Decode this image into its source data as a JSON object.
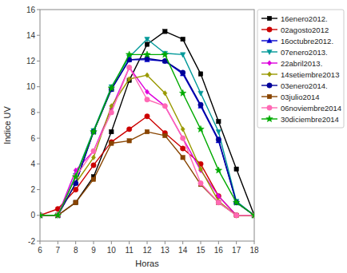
{
  "chart_data": {
    "type": "line",
    "x": [
      6,
      7,
      8,
      9,
      10,
      11,
      12,
      13,
      14,
      15,
      16,
      17,
      18
    ],
    "series": [
      {
        "name": "16enero2012.",
        "color": "#000000",
        "marker": "square",
        "values": [
          0.0,
          0.0,
          1.0,
          3.0,
          6.5,
          10.5,
          13.3,
          14.3,
          13.7,
          11.0,
          7.3,
          3.6,
          0.0
        ]
      },
      {
        "name": "02agosto2012",
        "color": "#cc0000",
        "marker": "circle",
        "values": [
          0.0,
          0.5,
          2.0,
          3.9,
          5.7,
          6.7,
          7.7,
          6.4,
          5.2,
          4.0,
          1.5,
          0.0,
          0.0
        ]
      },
      {
        "name": "16octubre2012.",
        "color": "#0000cc",
        "marker": "triangle-up",
        "values": [
          0.0,
          0.0,
          2.5,
          6.5,
          9.8,
          12.1,
          12.1,
          12.0,
          11.0,
          8.5,
          5.8,
          1.0,
          0.0
        ]
      },
      {
        "name": "07enero2013.",
        "color": "#009999",
        "marker": "triangle-down",
        "values": [
          0.0,
          0.0,
          3.1,
          6.6,
          10.0,
          12.3,
          13.7,
          12.6,
          12.5,
          9.5,
          6.5,
          1.1,
          0.0
        ]
      },
      {
        "name": "22abril2013.",
        "color": "#dd00dd",
        "marker": "diamond",
        "values": [
          0.0,
          0.0,
          3.5,
          5.0,
          8.3,
          11.5,
          9.6,
          8.5,
          6.0,
          3.5,
          1.5,
          0.0,
          0.0
        ]
      },
      {
        "name": "14setiembre2013",
        "color": "#999900",
        "marker": "diamond",
        "values": [
          0.0,
          0.0,
          2.5,
          4.5,
          8.5,
          10.6,
          10.9,
          9.5,
          6.7,
          3.6,
          1.1,
          0.0,
          0.0
        ]
      },
      {
        "name": "03enero2014.",
        "color": "#000099",
        "marker": "circle",
        "values": [
          0.0,
          0.0,
          2.5,
          6.5,
          9.8,
          12.1,
          12.2,
          12.0,
          11.1,
          8.6,
          5.9,
          1.0,
          0.0
        ]
      },
      {
        "name": "03julio2014",
        "color": "#884400",
        "marker": "square",
        "values": [
          0.0,
          0.0,
          1.0,
          2.8,
          5.6,
          5.8,
          6.5,
          6.2,
          4.5,
          2.4,
          1.0,
          0.0,
          0.0
        ]
      },
      {
        "name": "06noviembre2014",
        "color": "#ff69b4",
        "marker": "circle",
        "values": [
          0.0,
          0.0,
          3.0,
          5.0,
          8.0,
          11.5,
          9.0,
          8.5,
          6.0,
          2.5,
          1.0,
          0.0,
          0.0
        ]
      },
      {
        "name": "30diciembre2014",
        "color": "#00aa00",
        "marker": "star",
        "values": [
          0.0,
          0.0,
          3.0,
          6.5,
          9.9,
          12.5,
          12.5,
          12.5,
          9.5,
          6.7,
          3.5,
          1.0,
          0.0
        ]
      }
    ],
    "xlabel": "Horas",
    "ylabel": "Indice UV",
    "xlim": [
      6,
      18
    ],
    "ylim": [
      -2,
      16
    ],
    "xticks": [
      6,
      7,
      8,
      9,
      10,
      11,
      12,
      13,
      14,
      15,
      16,
      17,
      18
    ],
    "yticks": [
      -2,
      0,
      2,
      4,
      6,
      8,
      10,
      12,
      14,
      16
    ],
    "grid": false,
    "legend": "upper right"
  }
}
